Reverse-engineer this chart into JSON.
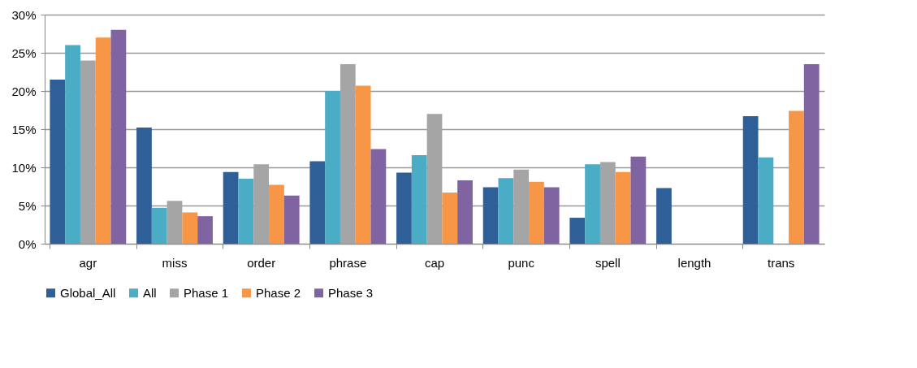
{
  "chart_data": {
    "type": "bar",
    "categories": [
      "agr",
      "miss",
      "order",
      "phrase",
      "cap",
      "punc",
      "spell",
      "length",
      "trans"
    ],
    "series": [
      {
        "name": "Global_All",
        "color": "#2e5f97",
        "values": [
          21.5,
          15.2,
          9.4,
          10.8,
          9.3,
          7.4,
          3.4,
          7.3,
          16.7
        ]
      },
      {
        "name": "All",
        "color": "#4bacc6",
        "values": [
          26,
          4.7,
          8.5,
          20,
          11.6,
          8.6,
          10.4,
          0,
          11.3
        ]
      },
      {
        "name": "Phase 1",
        "color": "#a5a5a5",
        "values": [
          24,
          5.6,
          10.4,
          23.5,
          17,
          9.7,
          10.7,
          0,
          0
        ]
      },
      {
        "name": "Phase 2",
        "color": "#f79646",
        "values": [
          27,
          4.1,
          7.7,
          20.7,
          6.7,
          8.1,
          9.4,
          0,
          17.4
        ]
      },
      {
        "name": "Phase 3",
        "color": "#8064a2",
        "values": [
          28,
          3.6,
          6.3,
          12.4,
          8.3,
          7.4,
          11.4,
          0,
          23.5
        ]
      }
    ],
    "ylim": [
      0,
      30
    ],
    "yticks": [
      {
        "value": 0,
        "label": "0%"
      },
      {
        "value": 5,
        "label": "5%"
      },
      {
        "value": 10,
        "label": "10%"
      },
      {
        "value": 15,
        "label": "15%"
      },
      {
        "value": 20,
        "label": "20%"
      },
      {
        "value": 25,
        "label": "25%"
      },
      {
        "value": 30,
        "label": "30%"
      }
    ],
    "grid": "y",
    "legend": "bottom"
  }
}
